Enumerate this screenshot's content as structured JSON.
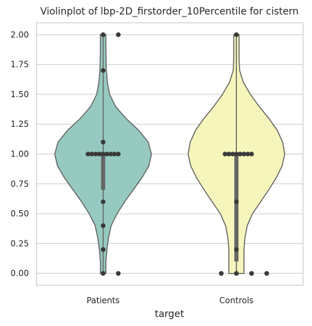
{
  "chart_data": {
    "type": "violin",
    "title": "Violinplot of lbp-2D_firstorder_10Percentile for cistern",
    "xlabel": "target",
    "ylabel": "",
    "categories": [
      "Patients",
      "Controls"
    ],
    "ylim": [
      -0.1,
      2.1
    ],
    "yticks": [
      "0.00",
      "0.25",
      "0.50",
      "0.75",
      "1.00",
      "1.25",
      "1.50",
      "1.75",
      "2.00"
    ],
    "grid": "horizontal",
    "colors": {
      "Patients": "#96cac1",
      "Controls": "#f6f6bc"
    },
    "series": [
      {
        "category": "Patients",
        "points": [
          2.0,
          2.0,
          1.7,
          1.1,
          1.0,
          1.0,
          1.0,
          1.0,
          1.0,
          1.0,
          1.0,
          1.0,
          1.0,
          0.6,
          0.4,
          0.2,
          0.0,
          0.0
        ],
        "density": [
          [
            0.0,
            0.05
          ],
          [
            0.1,
            0.05
          ],
          [
            0.2,
            0.07
          ],
          [
            0.3,
            0.1
          ],
          [
            0.4,
            0.15
          ],
          [
            0.5,
            0.26
          ],
          [
            0.6,
            0.4
          ],
          [
            0.7,
            0.56
          ],
          [
            0.8,
            0.72
          ],
          [
            0.9,
            0.85
          ],
          [
            1.0,
            0.9
          ],
          [
            1.1,
            0.84
          ],
          [
            1.2,
            0.66
          ],
          [
            1.3,
            0.42
          ],
          [
            1.4,
            0.23
          ],
          [
            1.5,
            0.12
          ],
          [
            1.6,
            0.08
          ],
          [
            1.7,
            0.06
          ],
          [
            1.8,
            0.055
          ],
          [
            1.9,
            0.05
          ],
          [
            2.0,
            0.05
          ]
        ]
      },
      {
        "category": "Controls",
        "points": [
          2.0,
          1.0,
          1.0,
          1.0,
          1.0,
          1.0,
          1.0,
          1.0,
          1.0,
          0.6,
          0.2,
          0.0,
          0.0,
          0.0,
          0.0
        ],
        "density": [
          [
            0.0,
            0.14
          ],
          [
            0.1,
            0.14
          ],
          [
            0.2,
            0.14
          ],
          [
            0.3,
            0.16
          ],
          [
            0.4,
            0.2
          ],
          [
            0.5,
            0.3
          ],
          [
            0.6,
            0.45
          ],
          [
            0.7,
            0.6
          ],
          [
            0.8,
            0.74
          ],
          [
            0.9,
            0.85
          ],
          [
            1.0,
            0.9
          ],
          [
            1.1,
            0.86
          ],
          [
            1.2,
            0.76
          ],
          [
            1.3,
            0.6
          ],
          [
            1.4,
            0.42
          ],
          [
            1.5,
            0.26
          ],
          [
            1.6,
            0.13
          ],
          [
            1.7,
            0.06
          ],
          [
            1.8,
            0.05
          ],
          [
            1.9,
            0.05
          ],
          [
            2.0,
            0.05
          ]
        ]
      }
    ]
  }
}
